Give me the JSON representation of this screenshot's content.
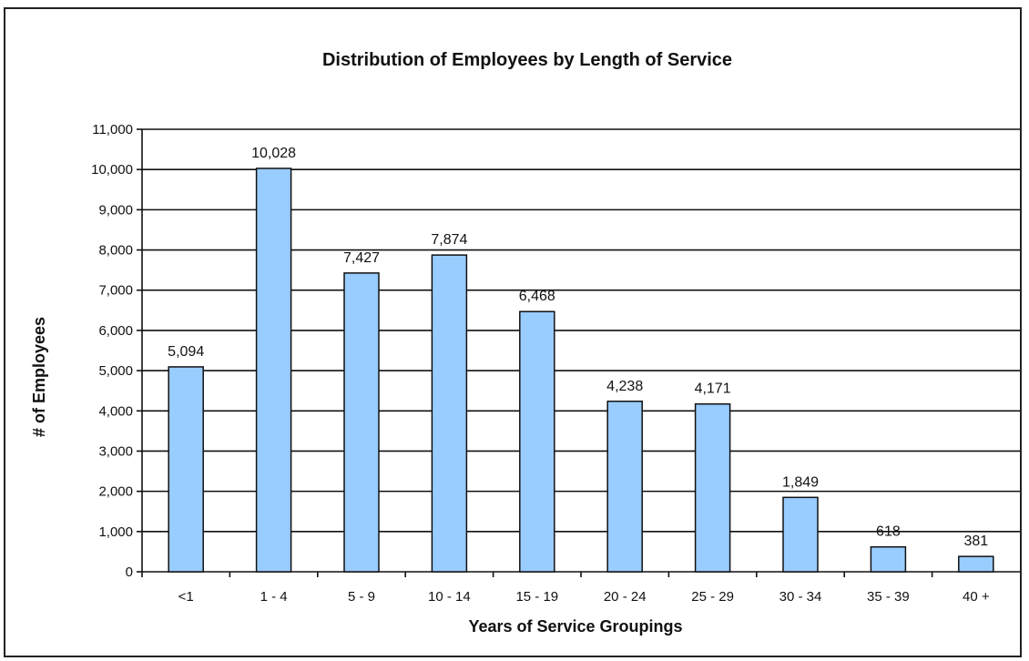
{
  "chart_data": {
    "type": "bar",
    "title": "Distribution of Employees by Length of Service",
    "xlabel": "Years of Service Groupings",
    "ylabel": "# of Employees",
    "categories": [
      "<1",
      "1 - 4",
      "5 - 9",
      "10 - 14",
      "15 - 19",
      "20 - 24",
      "25 - 29",
      "30 - 34",
      "35 - 39",
      "40 +"
    ],
    "values": [
      5094,
      10028,
      7427,
      7874,
      6468,
      4238,
      4171,
      1849,
      618,
      381
    ],
    "data_labels": [
      "5,094",
      "10,028",
      "7,427",
      "7,874",
      "6,468",
      "4,238",
      "4,171",
      "1,849",
      "618",
      "381"
    ],
    "ylim": [
      0,
      11000
    ],
    "yticks": [
      0,
      1000,
      2000,
      3000,
      4000,
      5000,
      6000,
      7000,
      8000,
      9000,
      10000,
      11000
    ],
    "ytick_labels": [
      "0",
      "1,000",
      "2,000",
      "3,000",
      "4,000",
      "5,000",
      "6,000",
      "7,000",
      "8,000",
      "9,000",
      "10,000",
      "11,000"
    ],
    "grid": true,
    "legend": "none",
    "colors": {
      "bar": "#99ccff",
      "border": "#111111"
    }
  }
}
